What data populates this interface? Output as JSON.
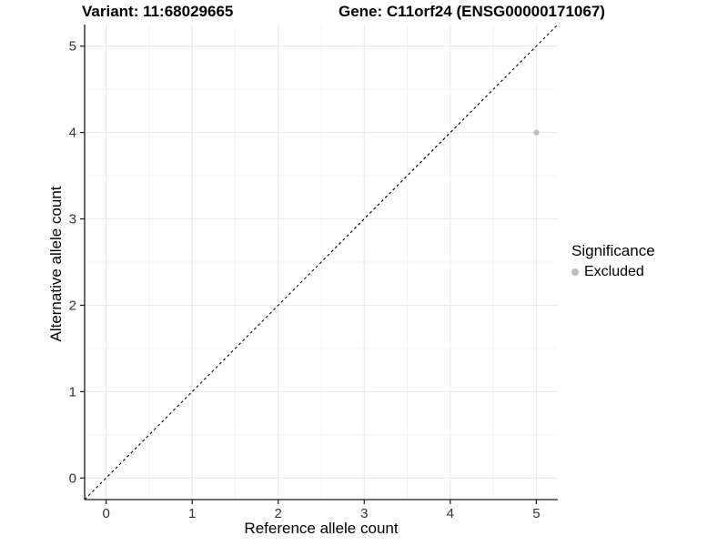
{
  "chart_data": {
    "type": "scatter",
    "title_left": "Variant: 11:68029665",
    "title_right": "Gene: C11orf24 (ENSG00000171067)",
    "xlabel": "Reference allele count",
    "ylabel": "Alternative allele count",
    "xlim": [
      -0.25,
      5.25
    ],
    "ylim": [
      -0.25,
      5.25
    ],
    "xticks": [
      0,
      1,
      2,
      3,
      4,
      5
    ],
    "yticks": [
      0,
      1,
      2,
      3,
      4,
      5
    ],
    "minor_tick_step": 0.5,
    "grid": true,
    "points": [
      {
        "x": 5,
        "y": 4,
        "series": "Excluded"
      }
    ],
    "reference_line": {
      "slope": 1,
      "intercept": 0,
      "style": "dashed",
      "color": "#000000"
    },
    "legend": {
      "title": "Significance",
      "position": "right",
      "entries": [
        {
          "label": "Excluded",
          "color": "#bdbdbd",
          "marker": "circle"
        }
      ]
    },
    "colors": {
      "background": "#ffffff",
      "grid_major": "#e9e9e9",
      "grid_minor": "#f4f4f4",
      "axis_line": "#1a1a1a",
      "tick_text": "#333333",
      "point": "#bdbdbd"
    }
  }
}
